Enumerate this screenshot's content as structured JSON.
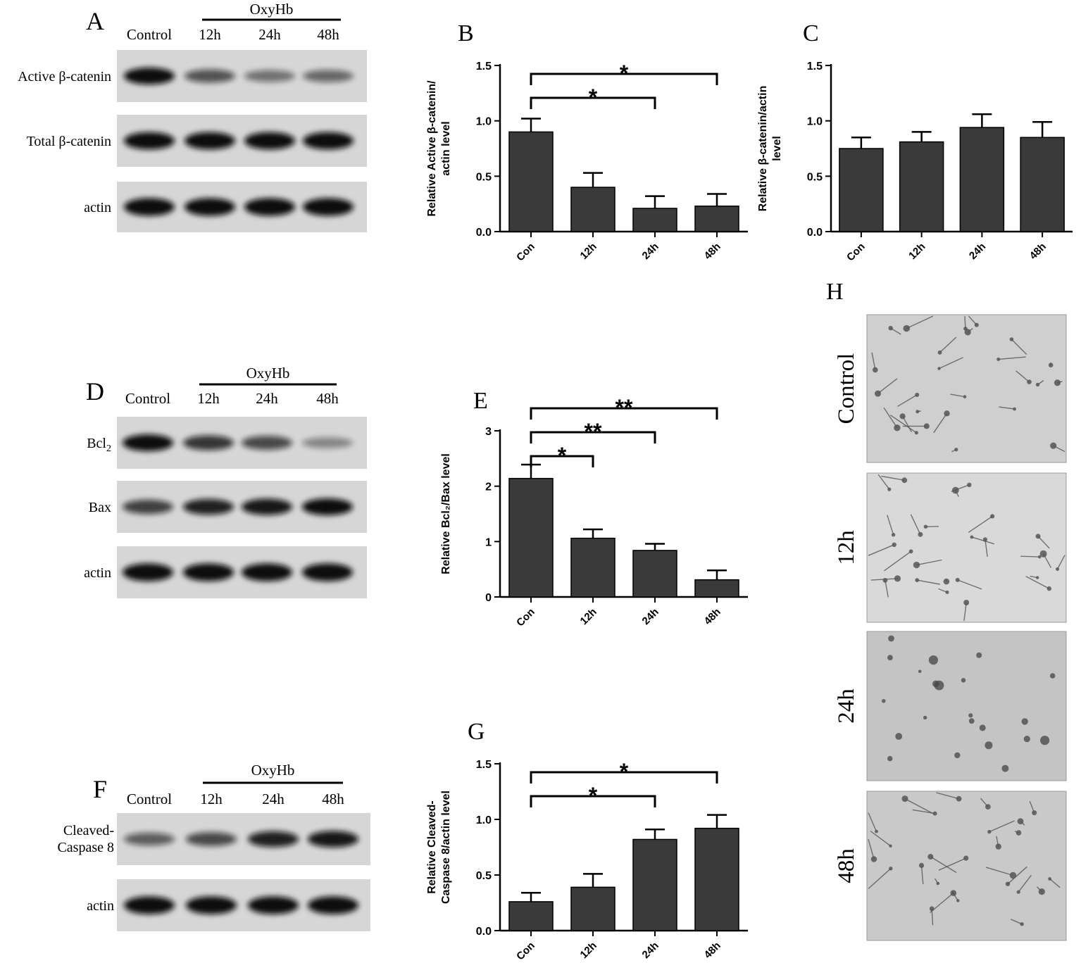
{
  "panel_letters": {
    "A": "A",
    "B": "B",
    "C": "C",
    "D": "D",
    "E": "E",
    "F": "F",
    "G": "G",
    "H": "H"
  },
  "blots": {
    "A": {
      "treatment": "OxyHb",
      "lanes": [
        "Control",
        "12h",
        "24h",
        "48h"
      ],
      "rows": [
        {
          "label": "Active β-catenin",
          "intensity": [
            0.85,
            0.5,
            0.35,
            0.4
          ]
        },
        {
          "label": "Total β-catenin",
          "intensity": [
            0.9,
            0.9,
            0.9,
            0.9
          ]
        },
        {
          "label": "actin",
          "intensity": [
            0.95,
            0.95,
            0.95,
            0.95
          ]
        }
      ]
    },
    "D": {
      "treatment": "OxyHb",
      "lanes": [
        "Control",
        "12h",
        "24h",
        "48h"
      ],
      "rows": [
        {
          "label": "Bcl",
          "subscript": "2",
          "intensity": [
            0.85,
            0.65,
            0.55,
            0.25
          ]
        },
        {
          "label": "Bax",
          "intensity": [
            0.6,
            0.75,
            0.8,
            0.85
          ]
        },
        {
          "label": "actin",
          "intensity": [
            0.95,
            0.95,
            0.95,
            0.95
          ]
        }
      ]
    },
    "F": {
      "treatment": "OxyHb",
      "lanes": [
        "Control",
        "12h",
        "24h",
        "48h"
      ],
      "rows": [
        {
          "label": "Cleaved-",
          "label2": "Caspase 8",
          "intensity": [
            0.45,
            0.55,
            0.75,
            0.8
          ]
        },
        {
          "label": "actin",
          "intensity": [
            0.95,
            0.95,
            0.95,
            0.95
          ]
        }
      ]
    }
  },
  "micrographs": {
    "labels": [
      "Control",
      "12h",
      "24h",
      "48h"
    ]
  },
  "chart_data": [
    {
      "id": "B",
      "type": "bar",
      "categories": [
        "Con",
        "12h",
        "24h",
        "48h"
      ],
      "values": [
        0.9,
        0.4,
        0.21,
        0.23
      ],
      "errors": [
        0.12,
        0.13,
        0.11,
        0.11
      ],
      "ylabel_lines": [
        "Relative Active β-catenin/",
        "actin level"
      ],
      "ylim": [
        0,
        1.5
      ],
      "yticks": [
        "0.0",
        "0.5",
        "1.0",
        "1.5"
      ],
      "significance": [
        {
          "from": 0,
          "to": 2,
          "label": "*"
        },
        {
          "from": 0,
          "to": 3,
          "label": "*"
        }
      ]
    },
    {
      "id": "C",
      "type": "bar",
      "categories": [
        "Con",
        "12h",
        "24h",
        "48h"
      ],
      "values": [
        0.75,
        0.81,
        0.94,
        0.85
      ],
      "errors": [
        0.1,
        0.09,
        0.12,
        0.14
      ],
      "ylabel_lines": [
        "Relative β-catenin/actin",
        "level"
      ],
      "ylim": [
        0,
        1.5
      ],
      "yticks": [
        "0.0",
        "0.5",
        "1.0",
        "1.5"
      ],
      "significance": []
    },
    {
      "id": "E",
      "type": "bar",
      "categories": [
        "Con",
        "12h",
        "24h",
        "48h"
      ],
      "values": [
        2.14,
        1.06,
        0.84,
        0.31
      ],
      "errors": [
        0.25,
        0.16,
        0.12,
        0.17
      ],
      "ylabel_lines": [
        "Relative Bcl₂/Bax level"
      ],
      "ylim": [
        0,
        3
      ],
      "yticks": [
        "0",
        "1",
        "2",
        "3"
      ],
      "significance": [
        {
          "from": 0,
          "to": 1,
          "label": "*"
        },
        {
          "from": 0,
          "to": 2,
          "label": "**"
        },
        {
          "from": 0,
          "to": 3,
          "label": "**"
        }
      ]
    },
    {
      "id": "G",
      "type": "bar",
      "categories": [
        "Con",
        "12h",
        "24h",
        "48h"
      ],
      "values": [
        0.26,
        0.39,
        0.82,
        0.92
      ],
      "errors": [
        0.08,
        0.12,
        0.09,
        0.12
      ],
      "ylabel_lines": [
        "Relative Cleaved-",
        "Caspase 8/actin level"
      ],
      "ylim": [
        0,
        1.5
      ],
      "yticks": [
        "0.0",
        "0.5",
        "1.0",
        "1.5"
      ],
      "significance": [
        {
          "from": 0,
          "to": 2,
          "label": "*"
        },
        {
          "from": 0,
          "to": 3,
          "label": "*"
        }
      ]
    }
  ],
  "colors": {
    "bar": "#3a3a3a",
    "axis": "#000000",
    "blot_bg": "#d6d6d6",
    "band": "#111111"
  }
}
